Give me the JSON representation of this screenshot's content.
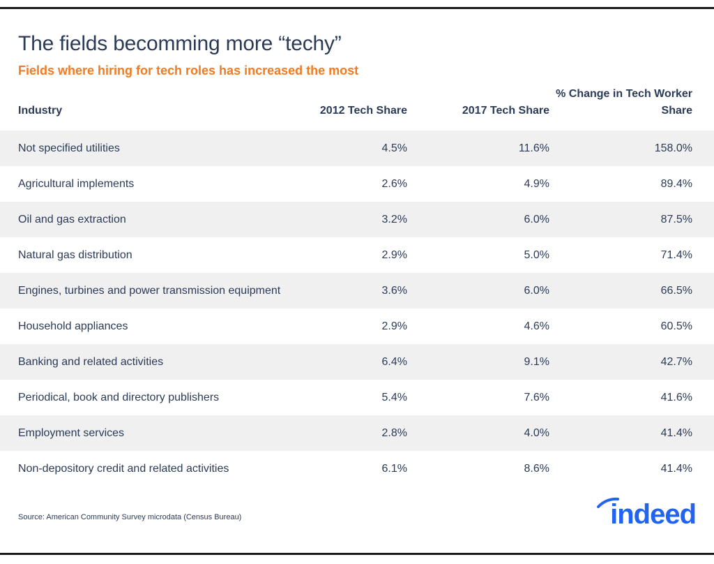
{
  "header": {
    "title": "The fields becomming more “techy”",
    "subtitle": "Fields where hiring for tech roles has increased the most"
  },
  "chart_data": {
    "type": "table",
    "title": "The fields becomming more “techy”",
    "subtitle": "Fields where hiring for tech roles has increased the most",
    "columns": [
      "Industry",
      "2012 Tech Share",
      "2017 Tech Share",
      "% Change in Tech Worker Share"
    ],
    "rows": [
      [
        "Not specified utilities",
        "4.5%",
        "11.6%",
        "158.0%"
      ],
      [
        "Agricultural implements",
        "2.6%",
        "4.9%",
        "89.4%"
      ],
      [
        "Oil and gas extraction",
        "3.2%",
        "6.0%",
        "87.5%"
      ],
      [
        "Natural gas distribution",
        "2.9%",
        "5.0%",
        "71.4%"
      ],
      [
        "Engines, turbines and power transmission equipment",
        "3.6%",
        "6.0%",
        "66.5%"
      ],
      [
        "Household appliances",
        "2.9%",
        "4.6%",
        "60.5%"
      ],
      [
        "Banking and related activities",
        "6.4%",
        "9.1%",
        "42.7%"
      ],
      [
        "Periodical, book and directory publishers",
        "5.4%",
        "7.6%",
        "41.6%"
      ],
      [
        "Employment services",
        "2.8%",
        "4.0%",
        "41.4%"
      ],
      [
        "Non-depository credit and related activities",
        "6.1%",
        "8.6%",
        "41.4%"
      ]
    ]
  },
  "footer": {
    "source": "Source: American Community Survey microdata (Census Bureau)",
    "logo_text": "indeed",
    "logo_icon": "indeed-logo-icon"
  },
  "colors": {
    "text": "#2b3a57",
    "accent_orange": "#f47a20",
    "row_shade": "#f0f0f0",
    "logo_blue": "#2164f3"
  }
}
